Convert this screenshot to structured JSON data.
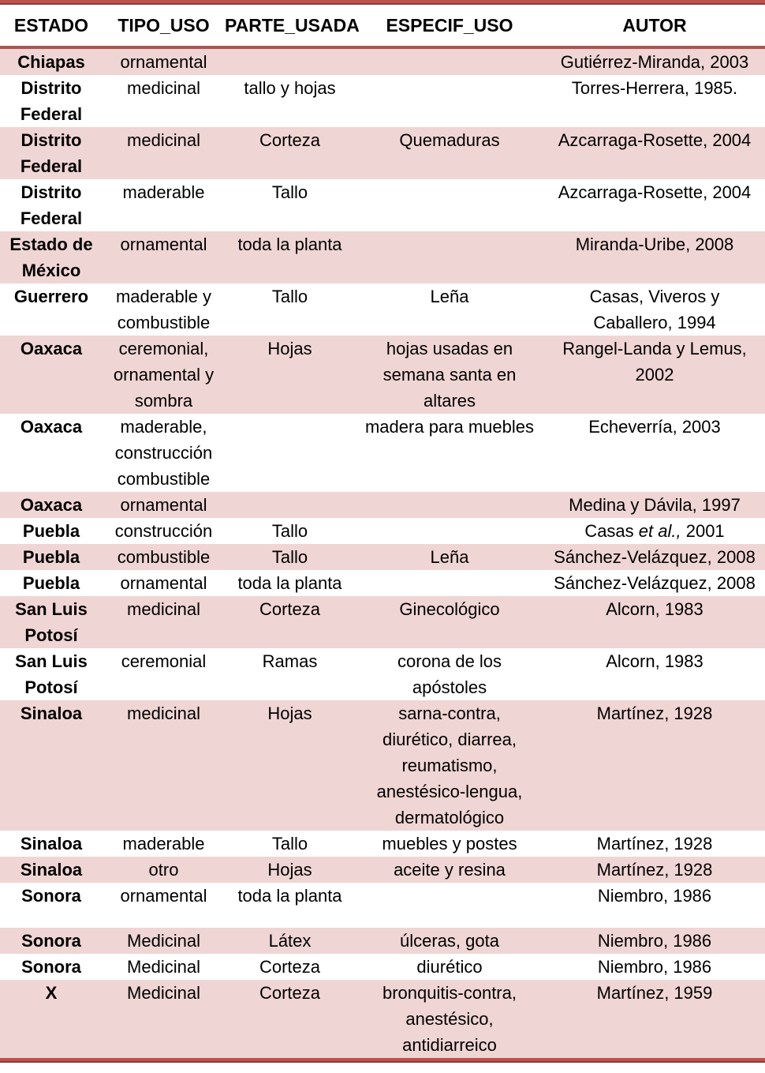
{
  "table": {
    "columns": [
      "ESTADO",
      "TIPO_USO",
      "PARTE_USADA",
      "ESPECIF_USO",
      "AUTOR"
    ],
    "rows": [
      {
        "estado": "Chiapas",
        "tipo_uso": "ornamental",
        "parte_usada": "",
        "especif_uso": "",
        "autor": "Gutiérrez-Miranda, 2003"
      },
      {
        "estado": "Distrito\nFederal",
        "tipo_uso": "medicinal",
        "parte_usada": "tallo y hojas",
        "especif_uso": "",
        "autor": "Torres-Herrera, 1985."
      },
      {
        "estado": "Distrito\nFederal",
        "tipo_uso": "medicinal",
        "parte_usada": "Corteza",
        "especif_uso": "Quemaduras",
        "autor": "Azcarraga-Rosette, 2004"
      },
      {
        "estado": "Distrito\nFederal",
        "tipo_uso": "maderable",
        "parte_usada": "Tallo",
        "especif_uso": "",
        "autor": "Azcarraga-Rosette, 2004"
      },
      {
        "estado": "Estado de\nMéxico",
        "tipo_uso": "ornamental",
        "parte_usada": "toda la planta",
        "especif_uso": "",
        "autor": "Miranda-Uribe, 2008"
      },
      {
        "estado": "Guerrero",
        "tipo_uso": "maderable y\ncombustible",
        "parte_usada": "Tallo",
        "especif_uso": "Leña",
        "autor": "Casas, Viveros y\nCaballero, 1994"
      },
      {
        "estado": "Oaxaca",
        "tipo_uso": "ceremonial,\nornamental y\nsombra",
        "parte_usada": "Hojas",
        "especif_uso": "hojas usadas en\nsemana santa en\naltares",
        "autor": "Rangel-Landa y Lemus,\n2002"
      },
      {
        "estado": "Oaxaca",
        "tipo_uso": "maderable,\nconstrucción\ncombustible",
        "parte_usada": "",
        "especif_uso": "madera para muebles",
        "autor": "Echeverría, 2003"
      },
      {
        "estado": "Oaxaca",
        "tipo_uso": "ornamental",
        "parte_usada": "",
        "especif_uso": "",
        "autor": "Medina y Dávila, 1997"
      },
      {
        "estado": "Puebla",
        "tipo_uso": "construcción",
        "parte_usada": "Tallo",
        "especif_uso": "",
        "autor": "Casas et al., 2001",
        "autor_etal_italic": true
      },
      {
        "estado": "Puebla",
        "tipo_uso": "combustible",
        "parte_usada": "Tallo",
        "especif_uso": "Leña",
        "autor": "Sánchez-Velázquez, 2008"
      },
      {
        "estado": "Puebla",
        "tipo_uso": "ornamental",
        "parte_usada": "toda la planta",
        "especif_uso": "",
        "autor": "Sánchez-Velázquez, 2008"
      },
      {
        "estado": "San Luis\nPotosí",
        "tipo_uso": "medicinal",
        "parte_usada": "Corteza",
        "especif_uso": "Ginecológico",
        "autor": "Alcorn, 1983"
      },
      {
        "estado": "San Luis\nPotosí",
        "tipo_uso": "ceremonial",
        "parte_usada": "Ramas",
        "especif_uso": "corona de los\napóstoles",
        "autor": "Alcorn, 1983"
      },
      {
        "estado": "Sinaloa",
        "tipo_uso": "medicinal",
        "parte_usada": "Hojas",
        "especif_uso": "sarna-contra,\ndiurético, diarrea,\nreumatismo,\nanestésico-lengua,\ndermatológico",
        "autor": "Martínez, 1928"
      },
      {
        "estado": "Sinaloa",
        "tipo_uso": "maderable",
        "parte_usada": "Tallo",
        "especif_uso": "muebles y postes",
        "autor": "Martínez, 1928"
      },
      {
        "estado": "Sinaloa",
        "tipo_uso": "otro",
        "parte_usada": "Hojas",
        "especif_uso": "aceite y resina",
        "autor": "Martínez, 1928"
      },
      {
        "estado": "Sonora",
        "tipo_uso": "ornamental",
        "parte_usada": "toda la planta",
        "especif_uso": "",
        "autor": "Niembro, 1986"
      },
      {
        "estado": "Sonora",
        "tipo_uso": "Medicinal",
        "parte_usada": "Látex",
        "especif_uso": "úlceras, gota",
        "autor": "Niembro, 1986"
      },
      {
        "estado": "Sonora",
        "tipo_uso": "Medicinal",
        "parte_usada": "Corteza",
        "especif_uso": "diurético",
        "autor": "Niembro, 1986"
      },
      {
        "estado": "X",
        "tipo_uso": "Medicinal",
        "parte_usada": "Corteza",
        "especif_uso": "bronquitis-contra,\nanestésico,\nantidiarreico",
        "autor": "Martínez, 1959"
      }
    ]
  },
  "colors": {
    "accent": "#C0504D",
    "accent_dark": "#8E3B39",
    "header_rule": "#AC5450",
    "row_shade": "#EFD5D3",
    "text": "#000000"
  }
}
